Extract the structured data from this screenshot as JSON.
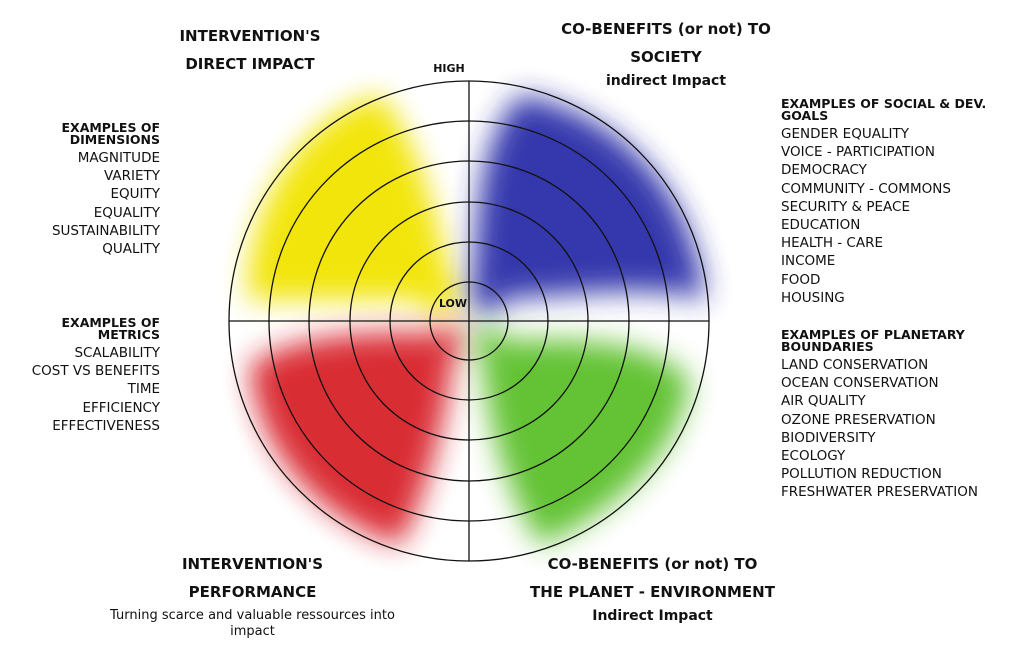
{
  "quadrants": {
    "top_left": {
      "title_lines": [
        "INTERVENTION'S",
        "DIRECT IMPACT"
      ],
      "color": "#f2e400"
    },
    "top_right": {
      "title_lines": [
        "CO-BENEFITS (or not) TO",
        "SOCIETY"
      ],
      "subtitle": "indirect Impact",
      "color": "#2a2ea8"
    },
    "bottom_left": {
      "title_lines": [
        "INTERVENTION'S",
        "PERFORMANCE"
      ],
      "subtitle_lines": [
        "Turning scarce and valuable ressources into",
        "impact"
      ],
      "color": "#d8222a"
    },
    "bottom_right": {
      "title_lines": [
        "CO-BENEFITS (or not) TO",
        "THE PLANET - ENVIRONMENT"
      ],
      "subtitle": "Indirect Impact",
      "color": "#5cc02a"
    }
  },
  "axis": {
    "high": "HIGH",
    "low": "LOW"
  },
  "dimensions": {
    "title_lines": [
      "EXAMPLES OF",
      "DIMENSIONS"
    ],
    "items": [
      "MAGNITUDE",
      "VARIETY",
      "EQUITY",
      "EQUALITY",
      "SUSTAINABILITY",
      "QUALITY"
    ]
  },
  "metrics": {
    "title_lines": [
      "EXAMPLES OF",
      "METRICS"
    ],
    "items": [
      "SCALABILITY",
      "COST VS BENEFITS",
      "TIME",
      "EFFICIENCY",
      "EFFECTIVENESS"
    ]
  },
  "social_goals": {
    "title_lines": [
      "EXAMPLES OF SOCIAL & DEV.",
      "GOALS"
    ],
    "items": [
      "GENDER EQUALITY",
      "VOICE - PARTICIPATION",
      "DEMOCRACY",
      "COMMUNITY - COMMONS",
      "SECURITY & PEACE",
      "EDUCATION",
      "HEALTH - CARE",
      "INCOME",
      "FOOD",
      "HOUSING"
    ]
  },
  "planetary": {
    "title_lines": [
      "EXAMPLES OF PLANETARY",
      "BOUNDARIES"
    ],
    "items": [
      "LAND CONSERVATION",
      "OCEAN CONSERVATION",
      "AIR QUALITY",
      "OZONE PRESERVATION",
      "BIODIVERSITY",
      "ECOLOGY",
      "POLLUTION REDUCTION",
      "FRESHWATER PRESERVATION"
    ]
  }
}
